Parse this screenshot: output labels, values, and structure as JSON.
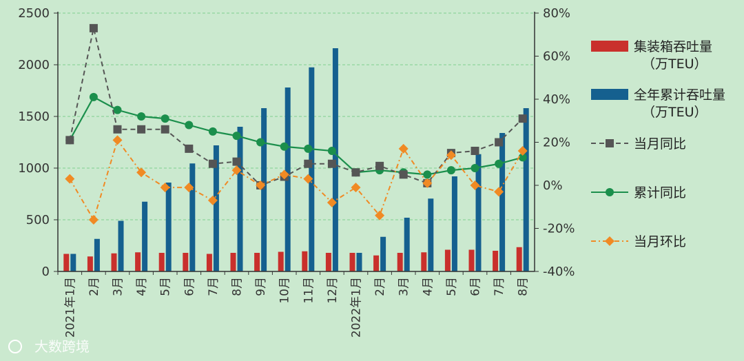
{
  "chart_data": {
    "type": "bar+line",
    "categories": [
      "2021年1月",
      "2月",
      "3月",
      "4月",
      "5月",
      "6月",
      "7月",
      "8月",
      "9月",
      "10月",
      "11月",
      "12月",
      "2022年1月",
      "2月",
      "3月",
      "4月",
      "5月",
      "6月",
      "7月",
      "8月"
    ],
    "left_axis": {
      "min": 0,
      "max": 2500,
      "ticks": [
        "0",
        "500",
        "1000",
        "1500",
        "2000",
        "2500"
      ]
    },
    "right_axis": {
      "min": -40,
      "max": 80,
      "ticks": [
        "-40%",
        "-20%",
        "0%",
        "20%",
        "40%",
        "60%",
        "80%"
      ]
    },
    "bar_series": [
      {
        "name": "集装箱吞吐量",
        "unit": "（万TEU）",
        "color": "#c9302c",
        "values": [
          170,
          145,
          175,
          185,
          180,
          180,
          170,
          180,
          180,
          190,
          195,
          180,
          180,
          155,
          180,
          185,
          210,
          210,
          200,
          235
        ]
      },
      {
        "name": "全年累计吞吐量",
        "unit": "（万TEU）",
        "color": "#15608f",
        "values": [
          170,
          315,
          490,
          675,
          860,
          1045,
          1220,
          1400,
          1580,
          1780,
          1975,
          2160,
          180,
          335,
          520,
          705,
          920,
          1135,
          1340,
          1580
        ]
      }
    ],
    "line_series": [
      {
        "name": "当月同比",
        "color": "#555555",
        "style": "dashed-square",
        "values": [
          21,
          73,
          26,
          26,
          26,
          17,
          10,
          11,
          0,
          4,
          10,
          10,
          6,
          9,
          5,
          1,
          15,
          16,
          20,
          31
        ]
      },
      {
        "name": "累计同比",
        "color": "#1b8f4c",
        "style": "solid-circle",
        "values": [
          21,
          41,
          35,
          32,
          31,
          28,
          25,
          23,
          20,
          18,
          17,
          16,
          6,
          7,
          6,
          5,
          7,
          8,
          10,
          13
        ]
      },
      {
        "name": "当月环比",
        "color": "#f08a24",
        "style": "dashdot-diamond",
        "values": [
          3,
          -16,
          21,
          6,
          -1,
          -1,
          -7,
          7,
          0,
          5,
          3,
          -8,
          -1,
          -14,
          17,
          1,
          14,
          0,
          -3,
          16
        ]
      }
    ]
  },
  "watermark": "大数跨境"
}
